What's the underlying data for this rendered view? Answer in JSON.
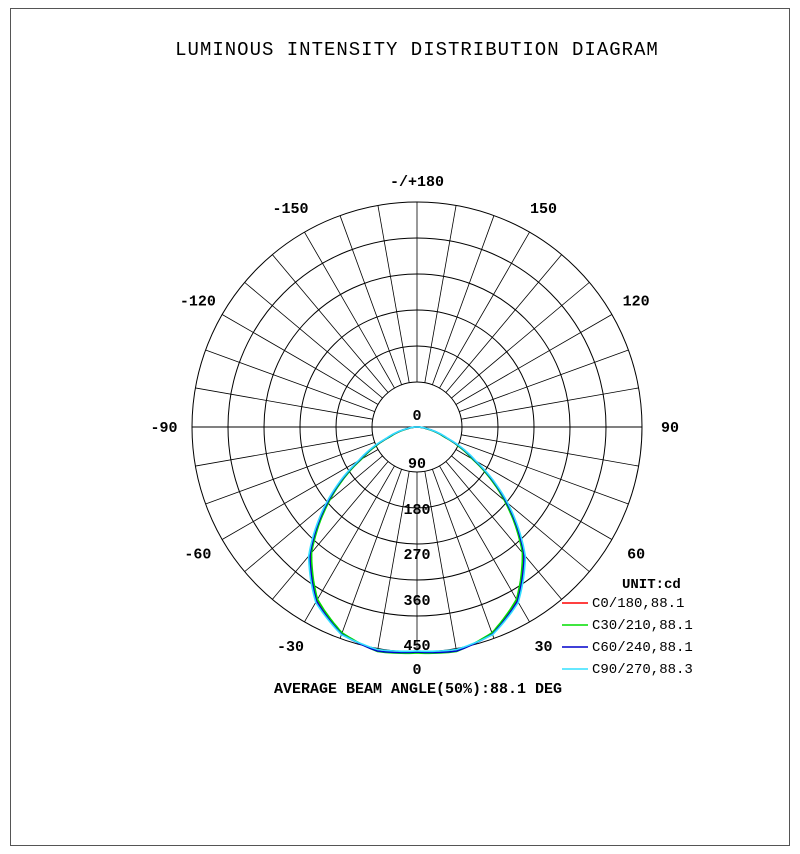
{
  "chart_data": {
    "type": "polar",
    "title": "LUMINOUS INTENSITY DISTRIBUTION DIAGRAM",
    "unit_label": "UNIT:cd",
    "footer": "AVERAGE BEAM ANGLE(50%):88.1 DEG",
    "radial_axis": {
      "ticks": [
        0,
        90,
        180,
        270,
        360,
        450
      ],
      "tick_labels": [
        "0",
        "90",
        "180",
        "270",
        "360",
        "450"
      ],
      "range": [
        0,
        450
      ],
      "bottom_label": "0"
    },
    "angular_axis": {
      "labels": [
        {
          "angle": 180,
          "text": "-/+180"
        },
        {
          "angle": -150,
          "text": "-150"
        },
        {
          "angle": 150,
          "text": "150"
        },
        {
          "angle": -120,
          "text": "-120"
        },
        {
          "angle": 120,
          "text": "120"
        },
        {
          "angle": -90,
          "text": "-90"
        },
        {
          "angle": 90,
          "text": "90"
        },
        {
          "angle": -60,
          "text": "-60"
        },
        {
          "angle": 60,
          "text": "60"
        },
        {
          "angle": -30,
          "text": "-30"
        },
        {
          "angle": 30,
          "text": "30"
        }
      ],
      "spoke_step_deg": 10
    },
    "grid": true,
    "legend_position": "bottom-right",
    "series": [
      {
        "name": "C0/180,88.1",
        "color": "#ff0000",
        "angles": [
          0,
          10,
          20,
          30,
          40,
          50,
          60,
          70,
          80,
          90
        ],
        "values": [
          450,
          455,
          440,
          400,
          330,
          230,
          130,
          60,
          20,
          0
        ]
      },
      {
        "name": "C30/210,88.1",
        "color": "#00dd00",
        "angles": [
          0,
          10,
          20,
          30,
          40,
          50,
          60,
          70,
          80,
          90
        ],
        "values": [
          452,
          456,
          438,
          398,
          328,
          228,
          128,
          58,
          18,
          0
        ]
      },
      {
        "name": "C60/240,88.1",
        "color": "#0000cc",
        "angles": [
          0,
          10,
          20,
          30,
          40,
          50,
          60,
          70,
          80,
          90
        ],
        "values": [
          450,
          455,
          441,
          402,
          333,
          233,
          133,
          62,
          21,
          0
        ]
      },
      {
        "name": "C90/270,88.3",
        "color": "#33e0ff",
        "angles": [
          0,
          10,
          20,
          30,
          40,
          50,
          60,
          70,
          80,
          90
        ],
        "values": [
          448,
          452,
          442,
          405,
          337,
          237,
          136,
          64,
          22,
          0
        ]
      }
    ]
  }
}
